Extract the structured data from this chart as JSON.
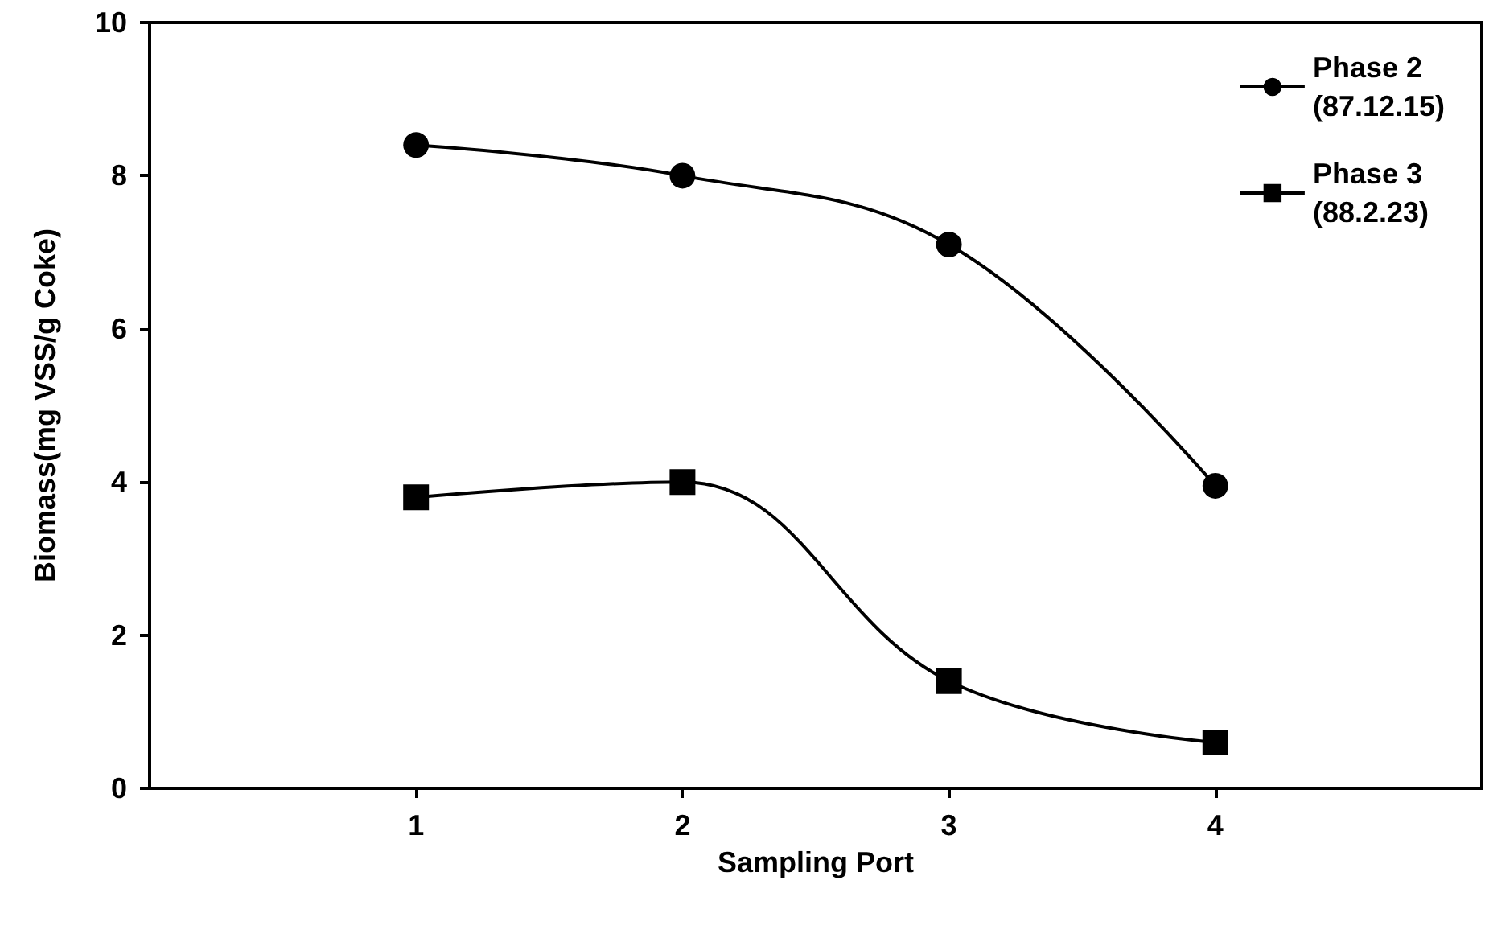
{
  "chart_data": {
    "type": "line",
    "xlabel": "Sampling Port",
    "ylabel": "Biomass(mg VSS/g Coke)",
    "x": [
      1,
      2,
      3,
      4
    ],
    "series": [
      {
        "name": "Phase 2\n(87.12.15)",
        "color": "#000000",
        "marker": "circle",
        "values": [
          8.4,
          8.0,
          7.1,
          3.95
        ]
      },
      {
        "name": "Phase 3\n(88.2.23)",
        "color": "#000000",
        "marker": "square",
        "values": [
          3.8,
          4.0,
          1.4,
          0.6
        ]
      }
    ],
    "xlim": [
      0,
      5
    ],
    "xticks": [
      1,
      2,
      3,
      4
    ],
    "ylim": [
      0,
      10
    ],
    "yticks": [
      0,
      2,
      4,
      6,
      8,
      10
    ],
    "grid": false,
    "legend": "top right",
    "line_style": "solid"
  }
}
